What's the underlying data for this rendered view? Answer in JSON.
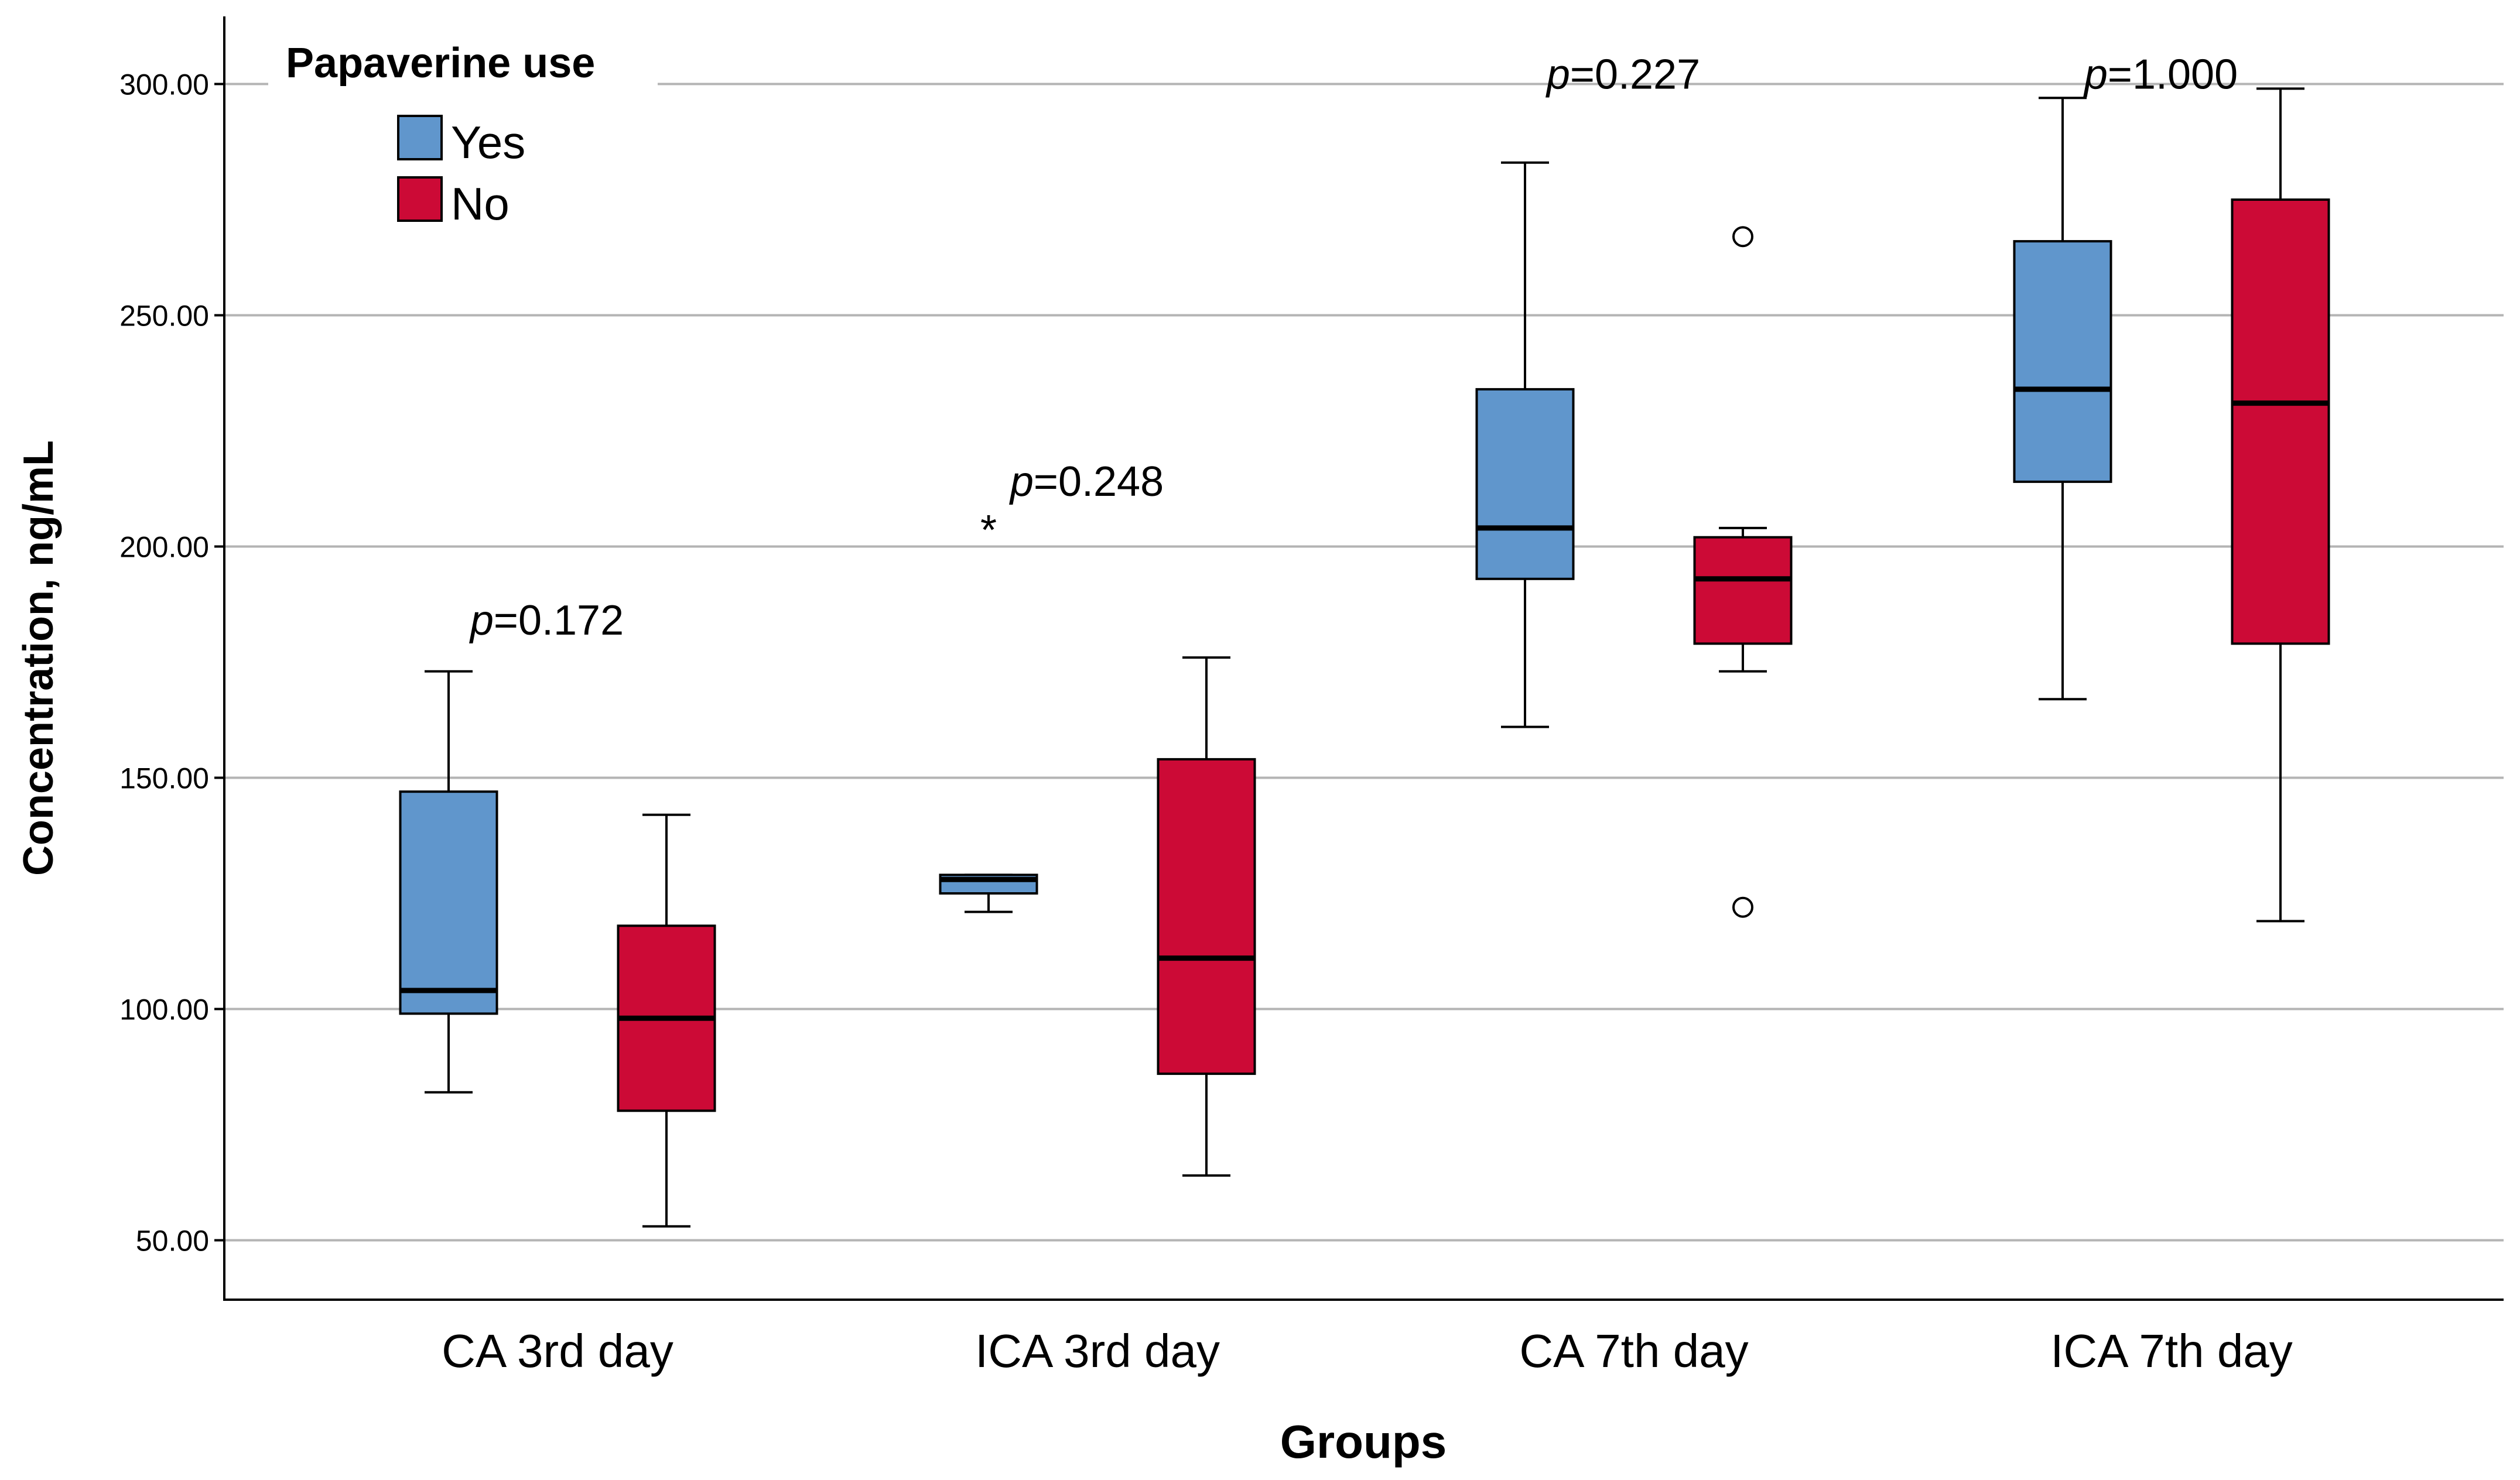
{
  "chart_data": {
    "type": "boxplot",
    "xlabel": "Groups",
    "ylabel": "Concentration, ng/mL",
    "ylim": [
      37,
      314
    ],
    "yticks": [
      "50.00",
      "100.00",
      "150.00",
      "200.00",
      "250.00",
      "300.00"
    ],
    "ytick_values": [
      50,
      100,
      150,
      200,
      250,
      300
    ],
    "grid": true,
    "legend": {
      "title": "Papaverine use",
      "position": "top-left",
      "entries": [
        {
          "label": "Yes",
          "color": "#6096cc"
        },
        {
          "label": "No",
          "color": "#cc0a36"
        }
      ]
    },
    "categories": [
      "CA 3rd day",
      "ICA 3rd day",
      "CA 7th day",
      "ICA 7th day"
    ],
    "p_values": [
      {
        "prefix": "p",
        "text": "=0.172",
        "y": 184
      },
      {
        "prefix": "p",
        "text": "=0.248",
        "y": 214
      },
      {
        "prefix": "p",
        "text": "=0.227",
        "y": 302
      },
      {
        "prefix": "p",
        "text": "=1.000",
        "y": 302
      }
    ],
    "series": [
      {
        "name": "Yes",
        "color": "#6096cc",
        "boxes": [
          {
            "whisker_low": 82,
            "q1": 99,
            "median": 104,
            "q3": 147,
            "whisker_high": 173,
            "outliers": [],
            "extremes": []
          },
          {
            "whisker_low": 121,
            "q1": 125,
            "median": 128,
            "q3": 129,
            "whisker_high": 129,
            "outliers": [],
            "extremes": [
              205
            ]
          },
          {
            "whisker_low": 161,
            "q1": 193,
            "median": 204,
            "q3": 234,
            "whisker_high": 283,
            "outliers": [],
            "extremes": []
          },
          {
            "whisker_low": 167,
            "q1": 214,
            "median": 234,
            "q3": 266,
            "whisker_high": 297,
            "outliers": [],
            "extremes": []
          }
        ]
      },
      {
        "name": "No",
        "color": "#cc0a36",
        "boxes": [
          {
            "whisker_low": 53,
            "q1": 78,
            "median": 98,
            "q3": 118,
            "whisker_high": 142,
            "outliers": [],
            "extremes": []
          },
          {
            "whisker_low": 64,
            "q1": 86,
            "median": 111,
            "q3": 154,
            "whisker_high": 176,
            "outliers": [],
            "extremes": []
          },
          {
            "whisker_low": 173,
            "q1": 179,
            "median": 193,
            "q3": 202,
            "whisker_high": 204,
            "outliers": [
              122,
              267
            ],
            "extremes": []
          },
          {
            "whisker_low": 119,
            "q1": 179,
            "median": 231,
            "q3": 275,
            "whisker_high": 299,
            "outliers": [],
            "extremes": []
          }
        ]
      }
    ]
  }
}
